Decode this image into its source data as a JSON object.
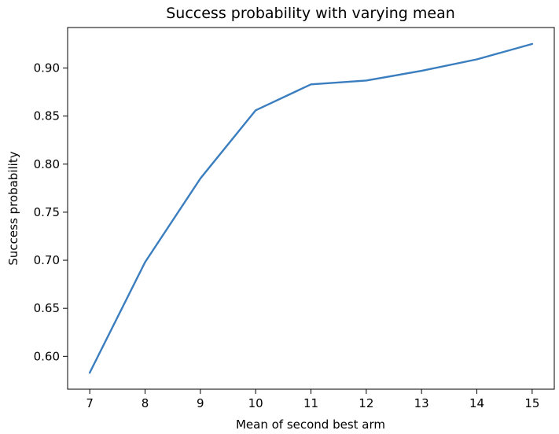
{
  "chart_data": {
    "type": "line",
    "title": "Success probability with varying mean",
    "xlabel": "Mean of second best arm",
    "ylabel": "Success probability",
    "x": [
      7,
      8,
      9,
      10,
      11,
      12,
      13,
      14,
      15
    ],
    "series": [
      {
        "values": [
          0.583,
          0.698,
          0.785,
          0.856,
          0.883,
          0.887,
          0.897,
          0.909,
          0.925
        ],
        "color": "#3a7ebf"
      }
    ],
    "xticks": [
      7,
      8,
      9,
      10,
      11,
      12,
      13,
      14,
      15
    ],
    "xtick_labels": [
      "7",
      "8",
      "9",
      "10",
      "11",
      "12",
      "13",
      "14",
      "15"
    ],
    "yticks": [
      0.6,
      0.65,
      0.7,
      0.75,
      0.8,
      0.85,
      0.9
    ],
    "ytick_labels": [
      "0.60",
      "0.65",
      "0.70",
      "0.75",
      "0.80",
      "0.85",
      "0.90"
    ],
    "xlim": [
      6.6,
      15.4
    ],
    "ylim": [
      0.5659,
      0.9421
    ],
    "grid": false,
    "legend": "none"
  }
}
